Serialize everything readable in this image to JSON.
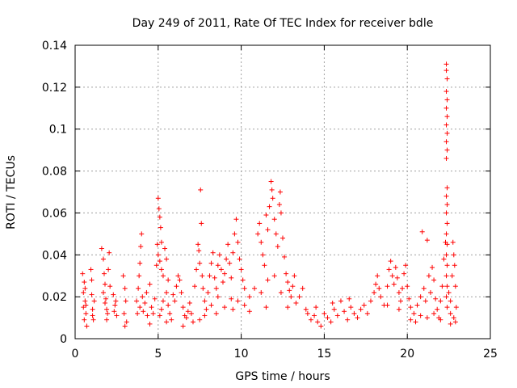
{
  "chart_data": {
    "type": "scatter",
    "title": "Day 249 of 2011, Rate Of TEC Index for receiver bdle",
    "xlabel": "GPS time / hours",
    "ylabel": "ROTI / TECUs",
    "xlim": [
      0,
      25
    ],
    "ylim": [
      0,
      0.14
    ],
    "xticks": [
      0,
      5,
      10,
      15,
      20,
      25
    ],
    "xtick_labels": [
      "0",
      "5",
      "10",
      "15",
      "20",
      "25"
    ],
    "yticks": [
      0,
      0.02,
      0.04,
      0.06,
      0.08,
      0.1,
      0.12,
      0.14
    ],
    "ytick_labels": [
      "0",
      "0.02",
      "0.04",
      "0.06",
      "0.08",
      "0.1",
      "0.12",
      "0.14"
    ],
    "grid": true,
    "marker": "+",
    "color": "#ff0000",
    "series": [
      {
        "name": "ROTI",
        "points": [
          [
            0.45,
            0.031
          ],
          [
            0.5,
            0.022
          ],
          [
            0.5,
            0.015
          ],
          [
            0.55,
            0.009
          ],
          [
            0.6,
            0.018
          ],
          [
            0.6,
            0.024
          ],
          [
            0.65,
            0.012
          ],
          [
            0.7,
            0.006
          ],
          [
            0.55,
            0.027
          ],
          [
            0.65,
            0.016
          ],
          [
            0.95,
            0.033
          ],
          [
            1.0,
            0.021
          ],
          [
            1.05,
            0.014
          ],
          [
            1.1,
            0.009
          ],
          [
            1.0,
            0.028
          ],
          [
            1.15,
            0.018
          ],
          [
            1.05,
            0.011
          ],
          [
            1.6,
            0.043
          ],
          [
            1.7,
            0.038
          ],
          [
            1.75,
            0.031
          ],
          [
            1.8,
            0.026
          ],
          [
            1.85,
            0.019
          ],
          [
            1.9,
            0.014
          ],
          [
            1.95,
            0.012
          ],
          [
            2.0,
            0.033
          ],
          [
            2.05,
            0.041
          ],
          [
            1.7,
            0.022
          ],
          [
            1.8,
            0.017
          ],
          [
            2.1,
            0.025
          ],
          [
            1.9,
            0.009
          ],
          [
            2.3,
            0.021
          ],
          [
            2.4,
            0.016
          ],
          [
            2.5,
            0.011
          ],
          [
            2.35,
            0.013
          ],
          [
            2.45,
            0.018
          ],
          [
            2.9,
            0.03
          ],
          [
            3.0,
            0.024
          ],
          [
            3.05,
            0.018
          ],
          [
            2.95,
            0.012
          ],
          [
            3.1,
            0.008
          ],
          [
            3.0,
            0.006
          ],
          [
            3.7,
            0.018
          ],
          [
            3.8,
            0.024
          ],
          [
            3.85,
            0.03
          ],
          [
            3.9,
            0.036
          ],
          [
            3.95,
            0.044
          ],
          [
            4.0,
            0.05
          ],
          [
            3.75,
            0.012
          ],
          [
            3.9,
            0.015
          ],
          [
            4.05,
            0.02
          ],
          [
            4.1,
            0.013
          ],
          [
            4.2,
            0.017
          ],
          [
            4.3,
            0.022
          ],
          [
            4.35,
            0.011
          ],
          [
            4.5,
            0.026
          ],
          [
            4.6,
            0.015
          ],
          [
            4.7,
            0.012
          ],
          [
            4.8,
            0.019
          ],
          [
            4.9,
            0.035
          ],
          [
            4.95,
            0.045
          ],
          [
            5.0,
            0.067
          ],
          [
            5.05,
            0.062
          ],
          [
            5.1,
            0.058
          ],
          [
            5.15,
            0.053
          ],
          [
            5.2,
            0.046
          ],
          [
            5.0,
            0.04
          ],
          [
            5.1,
            0.037
          ],
          [
            5.2,
            0.033
          ],
          [
            5.3,
            0.03
          ],
          [
            5.4,
            0.043
          ],
          [
            5.5,
            0.038
          ],
          [
            5.6,
            0.028
          ],
          [
            5.5,
            0.022
          ],
          [
            5.3,
            0.018
          ],
          [
            5.2,
            0.014
          ],
          [
            5.1,
            0.011
          ],
          [
            5.6,
            0.016
          ],
          [
            5.7,
            0.012
          ],
          [
            5.8,
            0.009
          ],
          [
            5.9,
            0.021
          ],
          [
            6.0,
            0.018
          ],
          [
            6.1,
            0.025
          ],
          [
            6.2,
            0.03
          ],
          [
            6.3,
            0.028
          ],
          [
            6.4,
            0.022
          ],
          [
            6.5,
            0.015
          ],
          [
            6.6,
            0.011
          ],
          [
            6.7,
            0.01
          ],
          [
            6.8,
            0.013
          ],
          [
            6.9,
            0.017
          ],
          [
            7.0,
            0.012
          ],
          [
            7.1,
            0.008
          ],
          [
            7.2,
            0.025
          ],
          [
            7.3,
            0.033
          ],
          [
            7.4,
            0.045
          ],
          [
            7.45,
            0.042
          ],
          [
            7.5,
            0.036
          ],
          [
            7.55,
            0.071
          ],
          [
            7.6,
            0.055
          ],
          [
            7.65,
            0.03
          ],
          [
            7.7,
            0.024
          ],
          [
            7.8,
            0.018
          ],
          [
            7.9,
            0.014
          ],
          [
            8.0,
            0.022
          ],
          [
            8.1,
            0.03
          ],
          [
            8.2,
            0.036
          ],
          [
            8.3,
            0.041
          ],
          [
            8.4,
            0.029
          ],
          [
            8.5,
            0.024
          ],
          [
            8.6,
            0.035
          ],
          [
            8.7,
            0.04
          ],
          [
            8.8,
            0.033
          ],
          [
            8.9,
            0.027
          ],
          [
            9.0,
            0.031
          ],
          [
            9.1,
            0.038
          ],
          [
            9.2,
            0.045
          ],
          [
            9.3,
            0.036
          ],
          [
            9.4,
            0.029
          ],
          [
            9.5,
            0.041
          ],
          [
            9.6,
            0.05
          ],
          [
            9.7,
            0.057
          ],
          [
            9.8,
            0.046
          ],
          [
            9.9,
            0.038
          ],
          [
            10.0,
            0.033
          ],
          [
            10.1,
            0.028
          ],
          [
            10.2,
            0.024
          ],
          [
            7.8,
            0.011
          ],
          [
            8.2,
            0.016
          ],
          [
            8.6,
            0.02
          ],
          [
            9.0,
            0.015
          ],
          [
            9.4,
            0.019
          ],
          [
            9.8,
            0.018
          ],
          [
            10.2,
            0.016
          ],
          [
            10.5,
            0.02
          ],
          [
            10.8,
            0.024
          ],
          [
            11.0,
            0.05
          ],
          [
            11.1,
            0.055
          ],
          [
            11.2,
            0.046
          ],
          [
            11.3,
            0.04
          ],
          [
            11.4,
            0.035
          ],
          [
            11.5,
            0.059
          ],
          [
            11.6,
            0.052
          ],
          [
            11.7,
            0.063
          ],
          [
            11.8,
            0.075
          ],
          [
            11.85,
            0.071
          ],
          [
            11.9,
            0.067
          ],
          [
            12.0,
            0.057
          ],
          [
            12.1,
            0.05
          ],
          [
            12.2,
            0.044
          ],
          [
            12.3,
            0.064
          ],
          [
            12.35,
            0.07
          ],
          [
            12.4,
            0.06
          ],
          [
            12.5,
            0.048
          ],
          [
            12.6,
            0.039
          ],
          [
            12.7,
            0.031
          ],
          [
            12.8,
            0.027
          ],
          [
            12.9,
            0.023
          ],
          [
            13.0,
            0.02
          ],
          [
            13.1,
            0.025
          ],
          [
            13.2,
            0.03
          ],
          [
            11.2,
            0.022
          ],
          [
            11.6,
            0.028
          ],
          [
            12.0,
            0.03
          ],
          [
            12.4,
            0.022
          ],
          [
            12.8,
            0.015
          ],
          [
            13.3,
            0.017
          ],
          [
            13.5,
            0.02
          ],
          [
            13.7,
            0.024
          ],
          [
            13.9,
            0.014
          ],
          [
            14.0,
            0.012
          ],
          [
            14.2,
            0.009
          ],
          [
            14.4,
            0.011
          ],
          [
            14.6,
            0.008
          ],
          [
            14.8,
            0.006
          ],
          [
            15.0,
            0.012
          ],
          [
            15.2,
            0.01
          ],
          [
            15.4,
            0.008
          ],
          [
            15.6,
            0.014
          ],
          [
            15.8,
            0.011
          ],
          [
            16.0,
            0.018
          ],
          [
            16.2,
            0.013
          ],
          [
            16.4,
            0.009
          ],
          [
            16.6,
            0.015
          ],
          [
            16.8,
            0.012
          ],
          [
            17.0,
            0.01
          ],
          [
            17.2,
            0.014
          ],
          [
            17.4,
            0.016
          ],
          [
            17.6,
            0.012
          ],
          [
            17.8,
            0.018
          ],
          [
            14.5,
            0.015
          ],
          [
            15.5,
            0.017
          ],
          [
            16.5,
            0.019
          ],
          [
            18.0,
            0.022
          ],
          [
            18.1,
            0.026
          ],
          [
            18.2,
            0.03
          ],
          [
            18.3,
            0.024
          ],
          [
            18.4,
            0.02
          ],
          [
            18.6,
            0.016
          ],
          [
            18.8,
            0.025
          ],
          [
            18.9,
            0.033
          ],
          [
            19.0,
            0.037
          ],
          [
            19.1,
            0.03
          ],
          [
            19.2,
            0.026
          ],
          [
            19.3,
            0.034
          ],
          [
            19.4,
            0.029
          ],
          [
            19.5,
            0.022
          ],
          [
            19.6,
            0.018
          ],
          [
            19.7,
            0.024
          ],
          [
            19.8,
            0.031
          ],
          [
            19.9,
            0.035
          ],
          [
            20.0,
            0.025
          ],
          [
            20.1,
            0.019
          ],
          [
            20.2,
            0.015
          ],
          [
            20.4,
            0.012
          ],
          [
            20.6,
            0.016
          ],
          [
            20.8,
            0.02
          ],
          [
            20.9,
            0.051
          ],
          [
            21.0,
            0.024
          ],
          [
            21.1,
            0.018
          ],
          [
            21.2,
            0.047
          ],
          [
            21.3,
            0.03
          ],
          [
            21.4,
            0.022
          ],
          [
            21.5,
            0.034
          ],
          [
            21.6,
            0.028
          ],
          [
            21.7,
            0.019
          ],
          [
            21.8,
            0.014
          ],
          [
            21.9,
            0.01
          ],
          [
            22.0,
            0.018
          ],
          [
            22.1,
            0.025
          ],
          [
            22.2,
            0.038
          ],
          [
            22.3,
            0.046
          ],
          [
            22.35,
            0.131
          ],
          [
            22.35,
            0.128
          ],
          [
            22.4,
            0.124
          ],
          [
            22.35,
            0.118
          ],
          [
            22.4,
            0.114
          ],
          [
            22.35,
            0.11
          ],
          [
            22.4,
            0.106
          ],
          [
            22.35,
            0.102
          ],
          [
            22.4,
            0.098
          ],
          [
            22.35,
            0.094
          ],
          [
            22.4,
            0.09
          ],
          [
            22.35,
            0.086
          ],
          [
            22.4,
            0.072
          ],
          [
            22.35,
            0.068
          ],
          [
            22.4,
            0.064
          ],
          [
            22.35,
            0.06
          ],
          [
            22.4,
            0.055
          ],
          [
            22.35,
            0.05
          ],
          [
            22.4,
            0.045
          ],
          [
            22.35,
            0.04
          ],
          [
            22.4,
            0.035
          ],
          [
            22.35,
            0.03
          ],
          [
            22.4,
            0.025
          ],
          [
            22.35,
            0.02
          ],
          [
            22.4,
            0.015
          ],
          [
            22.5,
            0.022
          ],
          [
            22.6,
            0.018
          ],
          [
            22.7,
            0.03
          ],
          [
            22.75,
            0.046
          ],
          [
            22.8,
            0.04
          ],
          [
            22.85,
            0.035
          ],
          [
            22.9,
            0.025
          ],
          [
            22.95,
            0.015
          ],
          [
            22.8,
            0.01
          ],
          [
            22.6,
            0.012
          ],
          [
            22.9,
            0.008
          ],
          [
            20.2,
            0.009
          ],
          [
            20.5,
            0.008
          ],
          [
            20.8,
            0.011
          ],
          [
            21.2,
            0.01
          ],
          [
            21.6,
            0.012
          ],
          [
            22.0,
            0.009
          ],
          [
            22.6,
            0.007
          ],
          [
            19.5,
            0.014
          ],
          [
            18.8,
            0.016
          ],
          [
            4.5,
            0.007
          ],
          [
            5.5,
            0.008
          ],
          [
            6.5,
            0.006
          ],
          [
            7.5,
            0.009
          ],
          [
            8.5,
            0.012
          ],
          [
            9.5,
            0.014
          ],
          [
            10.5,
            0.013
          ],
          [
            11.5,
            0.015
          ]
        ]
      }
    ]
  }
}
